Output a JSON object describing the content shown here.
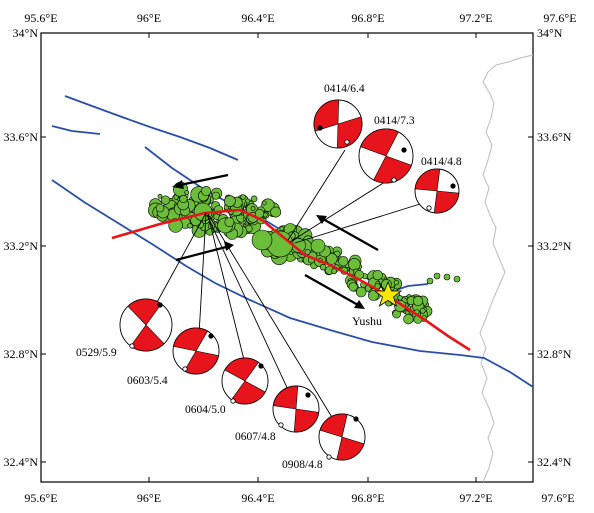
{
  "map": {
    "axes": {
      "top_labels": [
        "95.6°E",
        "96°E",
        "96.4°E",
        "96.8°E",
        "97.2°E",
        "97.6°E"
      ],
      "bottom_labels": [
        "95.6°E",
        "96°E",
        "96.4°E",
        "96.8°E",
        "97.2°E",
        "97.6°E"
      ],
      "left_labels": [
        "34°N",
        "33.6°N",
        "33.2°N",
        "32.8°N",
        "32.4°N"
      ],
      "right_labels": [
        "34°N",
        "33.6°N",
        "33.2°N",
        "32.8°N",
        "32.4°N"
      ]
    },
    "colors": {
      "fault": "#2a4ea8",
      "rupture": "#e8141c",
      "aftershock_fill": "#6cbd3a",
      "border": "#bbbbbb",
      "mechanism_fill": "#e8141c",
      "epicenter_star": "#ffe600"
    },
    "place": {
      "name": "Yushu",
      "lon": 97.02,
      "lat": 32.98
    },
    "mainshock": {
      "lon": 97.02,
      "lat": 33.0,
      "marker": "star"
    },
    "focal_mechanisms": [
      {
        "label": "0414/6.4"
      },
      {
        "label": "0414/7.3"
      },
      {
        "label": "0414/4.8"
      },
      {
        "label": "0529/5.9"
      },
      {
        "label": "0603/5.4"
      },
      {
        "label": "0604/5.0"
      },
      {
        "label": "0607/4.8"
      },
      {
        "label": "0908/4.8"
      }
    ],
    "legend": [],
    "arrows": [
      {
        "name": "left-lateral-arrow-northwest-upper",
        "direction": "west"
      },
      {
        "name": "left-lateral-arrow-northwest-lower",
        "direction": "east"
      },
      {
        "name": "left-lateral-arrow-southeast-upper",
        "direction": "west"
      },
      {
        "name": "left-lateral-arrow-southeast-lower",
        "direction": "east"
      }
    ]
  }
}
